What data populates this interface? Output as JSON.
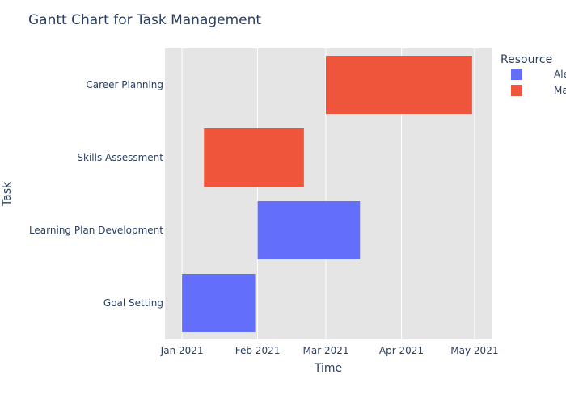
{
  "chart_data": {
    "type": "bar",
    "subtype": "gantt",
    "title": "Gantt Chart for Task Management",
    "xlabel": "Time",
    "ylabel": "Task",
    "legend_title": "Resource",
    "legend_position": "top-right",
    "grid": true,
    "xlim": [
      "2020-12-25",
      "2021-05-08"
    ],
    "x_ticks": [
      {
        "date": "2021-01-01",
        "label": "Jan 2021"
      },
      {
        "date": "2021-02-01",
        "label": "Feb 2021"
      },
      {
        "date": "2021-03-01",
        "label": "Mar 2021"
      },
      {
        "date": "2021-04-01",
        "label": "Apr 2021"
      },
      {
        "date": "2021-05-01",
        "label": "May 2021"
      }
    ],
    "categories": [
      "Career Planning",
      "Skills Assessment",
      "Learning Plan Development",
      "Goal Setting"
    ],
    "series": [
      {
        "name": "Alex",
        "color": "#636efa"
      },
      {
        "name": "Max",
        "color": "#ef553b"
      }
    ],
    "tasks": [
      {
        "task": "Goal Setting",
        "start": "2021-01-01",
        "end": "2021-01-31",
        "resource": "Alex"
      },
      {
        "task": "Learning Plan Development",
        "start": "2021-02-01",
        "end": "2021-03-15",
        "resource": "Alex"
      },
      {
        "task": "Skills Assessment",
        "start": "2021-01-10",
        "end": "2021-02-20",
        "resource": "Max"
      },
      {
        "task": "Career Planning",
        "start": "2021-03-01",
        "end": "2021-04-30",
        "resource": "Max"
      }
    ],
    "plot_bg": "#e5e5e5",
    "grid_color": "#ffffff"
  }
}
